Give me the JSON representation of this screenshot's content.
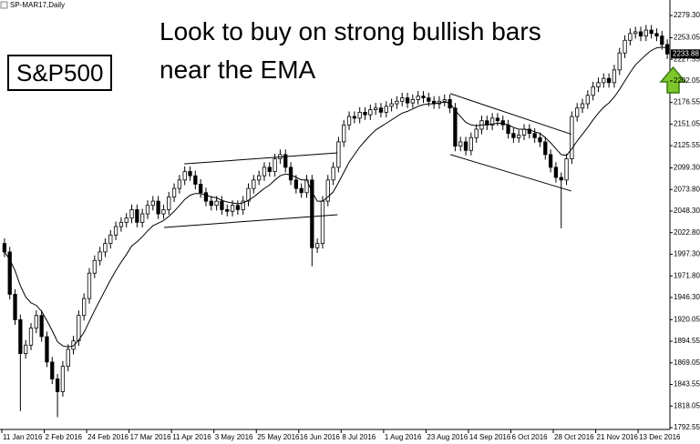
{
  "chart_data": {
    "type": "candlestick",
    "title": "Look to buy on strong bullish bars near the EMA",
    "label": "S&P500",
    "symbol": "SP-MAR17,Daily",
    "last_price": 2233.88,
    "up_color": "#ffffff",
    "down_color": "#000000",
    "line_color": "#000000",
    "xlim": [
      0,
      126
    ],
    "xticks": [
      {
        "value": 0,
        "label": "11 Jan 2016"
      },
      {
        "value": 8,
        "label": "2 Feb 2016"
      },
      {
        "value": 16,
        "label": "24 Feb 2016"
      },
      {
        "value": 24,
        "label": "17 Mar 2016"
      },
      {
        "value": 32,
        "label": "11 Apr 2016"
      },
      {
        "value": 40,
        "label": "3 May 2016"
      },
      {
        "value": 48,
        "label": "25 May 2016"
      },
      {
        "value": 56,
        "label": "16 Jun 2016"
      },
      {
        "value": 64,
        "label": "8 Jul 2016"
      },
      {
        "value": 72,
        "label": "1 Aug 2016"
      },
      {
        "value": 80,
        "label": "23 Aug 2016"
      },
      {
        "value": 88,
        "label": "14 Sep 2016"
      },
      {
        "value": 96,
        "label": "6 Oct 2016"
      },
      {
        "value": 104,
        "label": "28 Oct 2016"
      },
      {
        "value": 112,
        "label": "21 Nov 2016"
      },
      {
        "value": 120,
        "label": "13 Dec 2016"
      }
    ],
    "ylim": [
      1790.4,
      2292.2
    ],
    "yticks": [
      {
        "value": 2279.3,
        "label": "2279.30"
      },
      {
        "value": 2253.05,
        "label": "2253.05"
      },
      {
        "value": 2227.55,
        "label": "2227.55"
      },
      {
        "value": 2202.05,
        "label": "2202.05"
      },
      {
        "value": 2176.55,
        "label": "2176.55"
      },
      {
        "value": 2151.05,
        "label": "2151.05"
      },
      {
        "value": 2125.55,
        "label": "2125.55"
      },
      {
        "value": 2099.3,
        "label": "2099.30"
      },
      {
        "value": 2073.8,
        "label": "2073.80"
      },
      {
        "value": 2048.3,
        "label": "2048.30"
      },
      {
        "value": 2022.8,
        "label": "2022.80"
      },
      {
        "value": 1997.3,
        "label": "1997.30"
      },
      {
        "value": 1971.8,
        "label": "1971.80"
      },
      {
        "value": 1946.3,
        "label": "1946.30"
      },
      {
        "value": 1920.05,
        "label": "1920.05"
      },
      {
        "value": 1894.55,
        "label": "1894.55"
      },
      {
        "value": 1869.05,
        "label": "1869.05"
      },
      {
        "value": 1843.55,
        "label": "1843.55"
      },
      {
        "value": 1818.05,
        "label": "1818.05"
      },
      {
        "value": 1792.55,
        "label": "1792.55"
      }
    ],
    "open": [
      2010,
      2000,
      1950,
      1920,
      1880,
      1890,
      1910,
      1925,
      1900,
      1870,
      1850,
      1835,
      1865,
      1885,
      1895,
      1925,
      1945,
      1975,
      1990,
      2000,
      2010,
      2020,
      2030,
      2035,
      2040,
      2050,
      2035,
      2045,
      2055,
      2060,
      2045,
      2050,
      2065,
      2075,
      2085,
      2095,
      2090,
      2080,
      2070,
      2060,
      2055,
      2060,
      2050,
      2048,
      2055,
      2050,
      2060,
      2075,
      2085,
      2090,
      2100,
      2095,
      2110,
      2115,
      2100,
      2085,
      2075,
      2070,
      2085,
      2005,
      2010,
      2060,
      2085,
      2100,
      2130,
      2150,
      2160,
      2158,
      2165,
      2162,
      2168,
      2170,
      2165,
      2172,
      2175,
      2178,
      2182,
      2176,
      2180,
      2184,
      2182,
      2178,
      2175,
      2178,
      2180,
      2170,
      2125,
      2130,
      2120,
      2135,
      2145,
      2155,
      2150,
      2158,
      2155,
      2150,
      2140,
      2135,
      2138,
      2145,
      2140,
      2135,
      2130,
      2115,
      2100,
      2088,
      2085,
      2110,
      2160,
      2170,
      2175,
      2185,
      2195,
      2200,
      2205,
      2200,
      2215,
      2235,
      2250,
      2258,
      2260,
      2255,
      2262,
      2258,
      2255,
      2245
    ],
    "high": [
      2016,
      2006,
      1956,
      1926,
      1896,
      1916,
      1931,
      1931,
      1906,
      1876,
      1856,
      1871,
      1891,
      1901,
      1931,
      1951,
      1981,
      1996,
      2006,
      2016,
      2026,
      2036,
      2041,
      2046,
      2056,
      2056,
      2051,
      2061,
      2066,
      2066,
      2056,
      2071,
      2081,
      2091,
      2101,
      2101,
      2096,
      2086,
      2076,
      2066,
      2066,
      2066,
      2056,
      2061,
      2061,
      2066,
      2081,
      2091,
      2096,
      2106,
      2106,
      2116,
      2121,
      2121,
      2106,
      2091,
      2081,
      2091,
      2091,
      2016,
      2066,
      2091,
      2106,
      2136,
      2156,
      2166,
      2166,
      2171,
      2171,
      2174,
      2176,
      2176,
      2178,
      2181,
      2184,
      2188,
      2188,
      2186,
      2190,
      2190,
      2188,
      2184,
      2184,
      2186,
      2186,
      2176,
      2136,
      2136,
      2141,
      2151,
      2161,
      2161,
      2164,
      2164,
      2161,
      2156,
      2146,
      2144,
      2151,
      2151,
      2146,
      2141,
      2136,
      2121,
      2106,
      2094,
      2116,
      2166,
      2176,
      2181,
      2191,
      2201,
      2206,
      2211,
      2211,
      2221,
      2241,
      2256,
      2264,
      2266,
      2266,
      2268,
      2268,
      2264,
      2261,
      2251
    ],
    "low": [
      1994,
      1944,
      1914,
      1812,
      1874,
      1884,
      1904,
      1894,
      1864,
      1844,
      1805,
      1829,
      1859,
      1879,
      1889,
      1919,
      1939,
      1969,
      1984,
      1994,
      2004,
      2014,
      2024,
      2029,
      2034,
      2029,
      2029,
      2039,
      2049,
      2039,
      2039,
      2044,
      2059,
      2069,
      2079,
      2084,
      2074,
      2064,
      2054,
      2049,
      2049,
      2044,
      2042,
      2042,
      2044,
      2044,
      2054,
      2069,
      2079,
      2084,
      2089,
      2089,
      2104,
      2094,
      2079,
      2069,
      2064,
      2064,
      1983,
      1999,
      2004,
      2054,
      2079,
      2094,
      2124,
      2144,
      2152,
      2152,
      2156,
      2156,
      2162,
      2159,
      2159,
      2166,
      2169,
      2172,
      2170,
      2170,
      2174,
      2176,
      2172,
      2169,
      2169,
      2172,
      2164,
      2119,
      2119,
      2114,
      2114,
      2129,
      2139,
      2144,
      2144,
      2149,
      2144,
      2134,
      2129,
      2129,
      2132,
      2134,
      2129,
      2124,
      2109,
      2094,
      2082,
      2028,
      2079,
      2104,
      2154,
      2164,
      2169,
      2179,
      2189,
      2194,
      2194,
      2194,
      2209,
      2229,
      2244,
      2252,
      2249,
      2249,
      2252,
      2249,
      2239,
      2228
    ],
    "close": [
      2000,
      1950,
      1920,
      1880,
      1890,
      1910,
      1925,
      1900,
      1870,
      1850,
      1835,
      1865,
      1885,
      1895,
      1925,
      1945,
      1975,
      1990,
      2000,
      2010,
      2020,
      2030,
      2035,
      2040,
      2050,
      2035,
      2045,
      2055,
      2060,
      2045,
      2050,
      2065,
      2075,
      2085,
      2095,
      2090,
      2080,
      2070,
      2060,
      2055,
      2060,
      2050,
      2048,
      2055,
      2050,
      2060,
      2075,
      2085,
      2090,
      2100,
      2095,
      2110,
      2115,
      2100,
      2085,
      2075,
      2070,
      2085,
      2005,
      2010,
      2060,
      2085,
      2100,
      2130,
      2150,
      2160,
      2158,
      2165,
      2162,
      2168,
      2170,
      2165,
      2172,
      2175,
      2178,
      2182,
      2176,
      2180,
      2184,
      2182,
      2178,
      2175,
      2178,
      2180,
      2170,
      2125,
      2130,
      2120,
      2135,
      2145,
      2155,
      2150,
      2158,
      2155,
      2150,
      2140,
      2135,
      2138,
      2145,
      2140,
      2135,
      2130,
      2115,
      2100,
      2088,
      2085,
      2110,
      2160,
      2170,
      2175,
      2185,
      2195,
      2200,
      2205,
      2200,
      2215,
      2235,
      2250,
      2258,
      2260,
      2255,
      2262,
      2258,
      2255,
      2245,
      2233.88
    ],
    "ema": {
      "color": "#000000",
      "values": [
        2000,
        1991,
        1978,
        1960,
        1947,
        1940,
        1937,
        1930,
        1919,
        1907,
        1894,
        1889,
        1888,
        1889,
        1896,
        1905,
        1918,
        1931,
        1943,
        1955,
        1967,
        1978,
        1988,
        1997,
        2007,
        2012,
        2018,
        2025,
        2031,
        2034,
        2037,
        2042,
        2048,
        2055,
        2062,
        2067,
        2069,
        2069,
        2067,
        2065,
        2064,
        2061,
        2059,
        2058,
        2057,
        2058,
        2061,
        2065,
        2070,
        2075,
        2079,
        2085,
        2090,
        2092,
        2091,
        2088,
        2085,
        2085,
        2071,
        2060,
        2060,
        2065,
        2071,
        2082,
        2094,
        2106,
        2115,
        2124,
        2131,
        2138,
        2144,
        2148,
        2152,
        2156,
        2160,
        2164,
        2166,
        2169,
        2172,
        2174,
        2175,
        2175,
        2176,
        2177,
        2176,
        2167,
        2160,
        2153,
        2150,
        2149,
        2150,
        2150,
        2151,
        2152,
        2152,
        2150,
        2147,
        2145,
        2145,
        2144,
        2142,
        2140,
        2135,
        2129,
        2122,
        2115,
        2114,
        2122,
        2131,
        2139,
        2147,
        2156,
        2164,
        2171,
        2176,
        2183,
        2192,
        2202,
        2212,
        2221,
        2227,
        2233,
        2238,
        2241,
        2242,
        2241
      ]
    },
    "trendlines": [
      {
        "x1": 34.4,
        "y1": 2104,
        "x2": 63.3,
        "y2": 2117
      },
      {
        "x1": 30.6,
        "y1": 2029,
        "x2": 63.3,
        "y2": 2044
      },
      {
        "x1": 84.6,
        "y1": 2187,
        "x2": 107.4,
        "y2": 2139
      },
      {
        "x1": 84.6,
        "y1": 2115,
        "x2": 107.4,
        "y2": 2072
      }
    ]
  }
}
